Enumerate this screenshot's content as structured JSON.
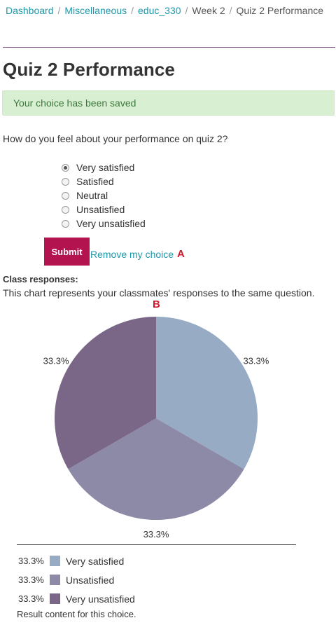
{
  "breadcrumb": {
    "items": [
      "Dashboard",
      "Miscellaneous",
      "educ_330",
      "Week 2"
    ],
    "current": "Quiz 2 Performance"
  },
  "page_title": "Quiz 2 Performance",
  "alert": {
    "text": "Your choice has been saved"
  },
  "question": "How do you feel about your performance on quiz 2?",
  "options": [
    {
      "label": "Very satisfied",
      "checked": true
    },
    {
      "label": "Satisfied",
      "checked": false
    },
    {
      "label": "Neutral",
      "checked": false
    },
    {
      "label": "Unsatisfied",
      "checked": false
    },
    {
      "label": "Very unsatisfied",
      "checked": false
    }
  ],
  "actions": {
    "submit_label": "Submit",
    "remove_label": "Remove my choice"
  },
  "annotations": {
    "a": "A",
    "b": "B"
  },
  "results": {
    "title": "Class responses:",
    "description": "This chart represents your classmates' responses to the same question.",
    "note": "Result content for this choice."
  },
  "colors": {
    "accent": "#b3134f",
    "link": "#1f97a8",
    "alert_bg": "#d9efd2",
    "alert_text": "#3c763d"
  },
  "chart_data": {
    "type": "pie",
    "categories": [
      "Very satisfied",
      "Unsatisfied",
      "Very unsatisfied"
    ],
    "values": [
      33.3,
      33.3,
      33.3
    ],
    "labels": [
      "33.3%",
      "33.3%",
      "33.3%"
    ],
    "colors": [
      "#97abc4",
      "#8d8aa8",
      "#7a6787"
    ],
    "legend": "bottom"
  }
}
